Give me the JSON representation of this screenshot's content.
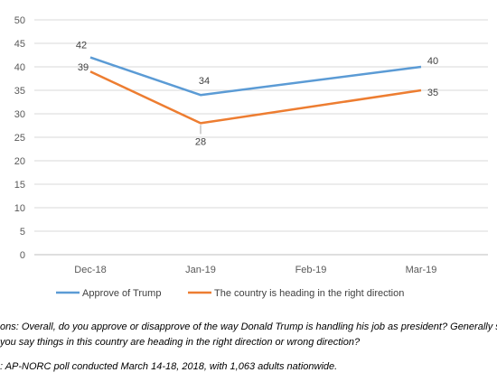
{
  "chart_data": {
    "type": "line",
    "categories": [
      "Dec-18",
      "Jan-19",
      "Feb-19",
      "Mar-19"
    ],
    "ylim": [
      0,
      50
    ],
    "yticks": [
      0,
      5,
      10,
      15,
      20,
      25,
      30,
      35,
      40,
      45,
      50
    ],
    "grid": true,
    "legend_position": "bottom",
    "series": [
      {
        "name": "Approve of Trump",
        "color": "#5B9BD5",
        "points": [
          [
            "Dec-18",
            42
          ],
          [
            "Jan-19",
            34
          ],
          [
            "Mar-19",
            40
          ]
        ]
      },
      {
        "name": "The country is heading in the right direction",
        "color": "#ED7D31",
        "points": [
          [
            "Dec-18",
            39
          ],
          [
            "Jan-19",
            28
          ],
          [
            "Mar-19",
            35
          ]
        ]
      }
    ]
  },
  "notes": {
    "questions_line1": "ons: Overall, do you approve or disapprove of the way Donald Trump is handling his job as president? Generally sp",
    "questions_line2": "you say things in this country are heading in the right direction or wrong direction?",
    "source": ": AP-NORC poll conducted March 14-18, 2018, with 1,063 adults nationwide."
  }
}
